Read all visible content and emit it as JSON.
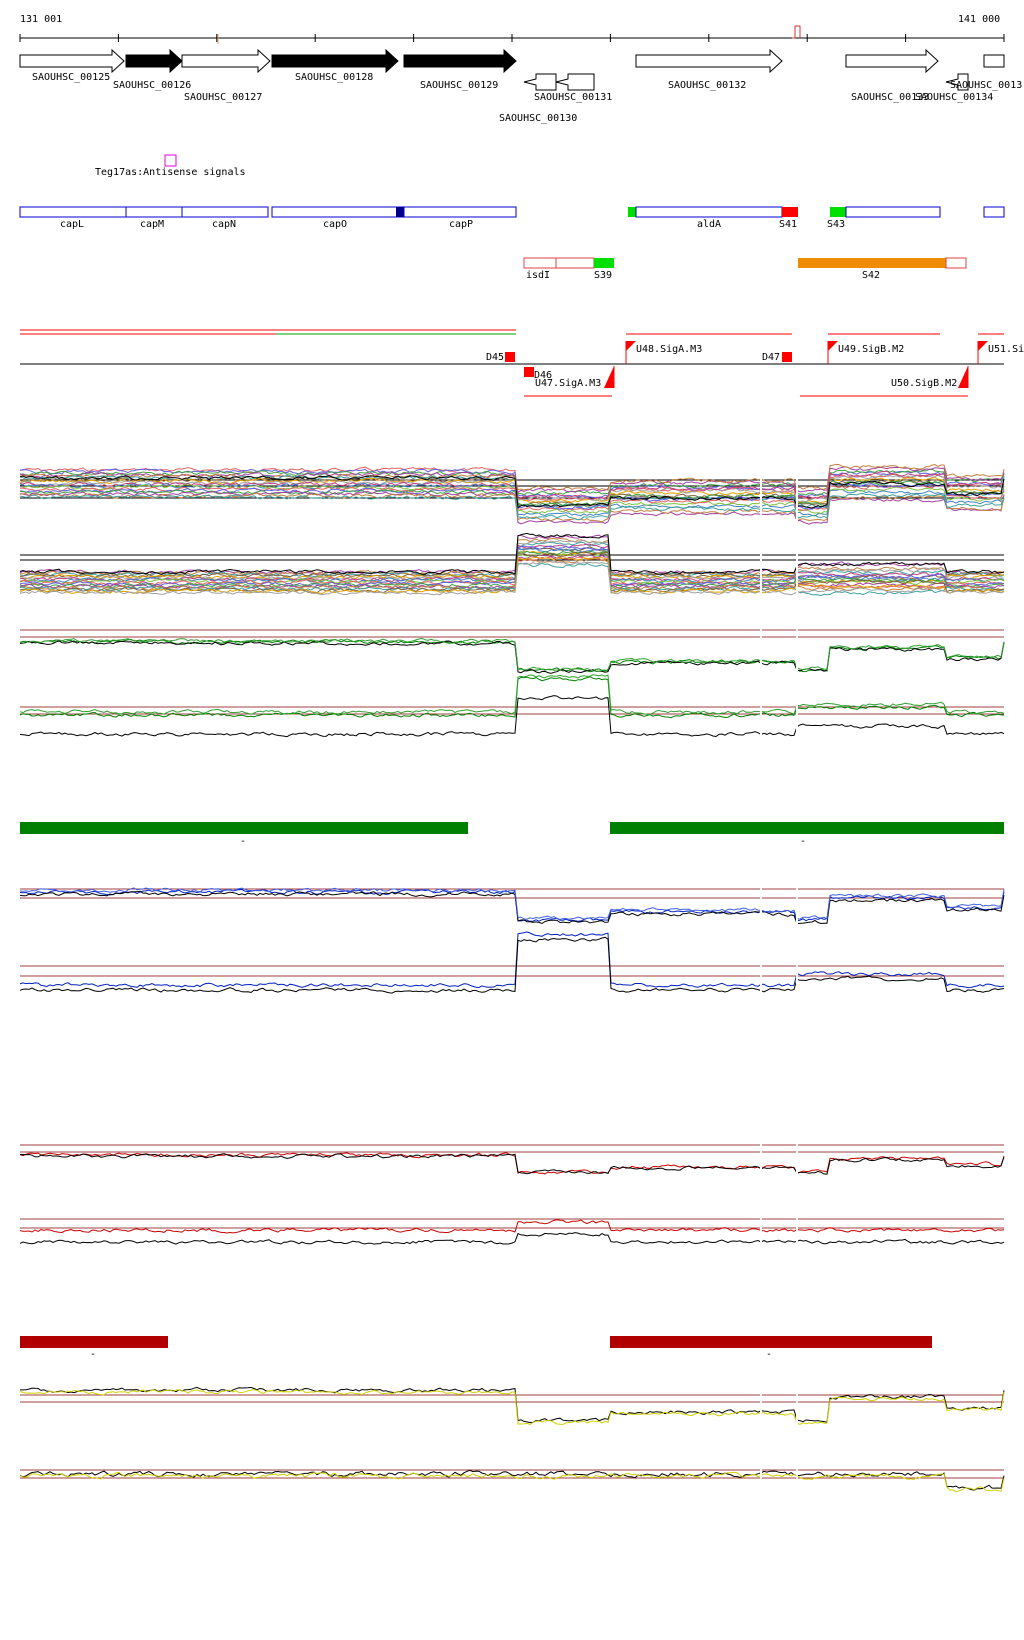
{
  "ruler": {
    "start_label": "131 001",
    "end_label": "141 000"
  },
  "genes": [
    {
      "id": "SAOUHSC_00125",
      "strand": "+",
      "filled": false
    },
    {
      "id": "SAOUHSC_00126",
      "strand": "+",
      "filled": true
    },
    {
      "id": "SAOUHSC_00127",
      "strand": "+",
      "filled": false
    },
    {
      "id": "SAOUHSC_00128",
      "strand": "+",
      "filled": true
    },
    {
      "id": "SAOUHSC_00129",
      "strand": "+",
      "filled": true
    },
    {
      "id": "SAOUHSC_00130",
      "strand": "-",
      "filled": false
    },
    {
      "id": "SAOUHSC_00131",
      "strand": "-",
      "filled": false
    },
    {
      "id": "SAOUHSC_00132",
      "strand": "+",
      "filled": false
    },
    {
      "id": "SAOUHSC_00133",
      "strand": "+",
      "filled": false
    },
    {
      "id": "SAOUHSC_00134",
      "strand": "-",
      "filled": false
    },
    {
      "id": "SAOUHSC_0013",
      "strand": "+",
      "filled": false
    }
  ],
  "antisense": {
    "label": "Teg17as:Antisense signals",
    "color": "#e000e0"
  },
  "annotations": [
    {
      "label": "capL"
    },
    {
      "label": "capM"
    },
    {
      "label": "capN"
    },
    {
      "label": "capO"
    },
    {
      "label": "capP"
    },
    {
      "label": "aldA"
    },
    {
      "label": "S41"
    },
    {
      "label": "S43"
    }
  ],
  "segments": [
    {
      "label": "isdI"
    },
    {
      "label": "S39"
    },
    {
      "label": "S42"
    }
  ],
  "promoters": [
    {
      "label": "D45"
    },
    {
      "label": "D46"
    },
    {
      "label": "U47.SigA.M3"
    },
    {
      "label": "U48.SigA.M3"
    },
    {
      "label": "D47"
    },
    {
      "label": "U49.SigB.M2"
    },
    {
      "label": "U50.SigB.M2"
    },
    {
      "label": "U51.Si"
    }
  ],
  "condition_bars": [
    {
      "label": "-",
      "color": "#008000"
    },
    {
      "label": "-",
      "color": "#008000"
    },
    {
      "label": "-",
      "color": "#b00000"
    },
    {
      "label": "-",
      "color": "#b00000"
    }
  ],
  "colors": {
    "gene_outline": "#000000",
    "annotation_outline": "#0000cc",
    "promoter": "#ff0000",
    "ref_line": "#a04040",
    "green": "#008000",
    "blue": "#0020c0",
    "red": "#cc0000",
    "yellow": "#d0d000",
    "orange": "#f08c00",
    "bright_green": "#00e000"
  }
}
